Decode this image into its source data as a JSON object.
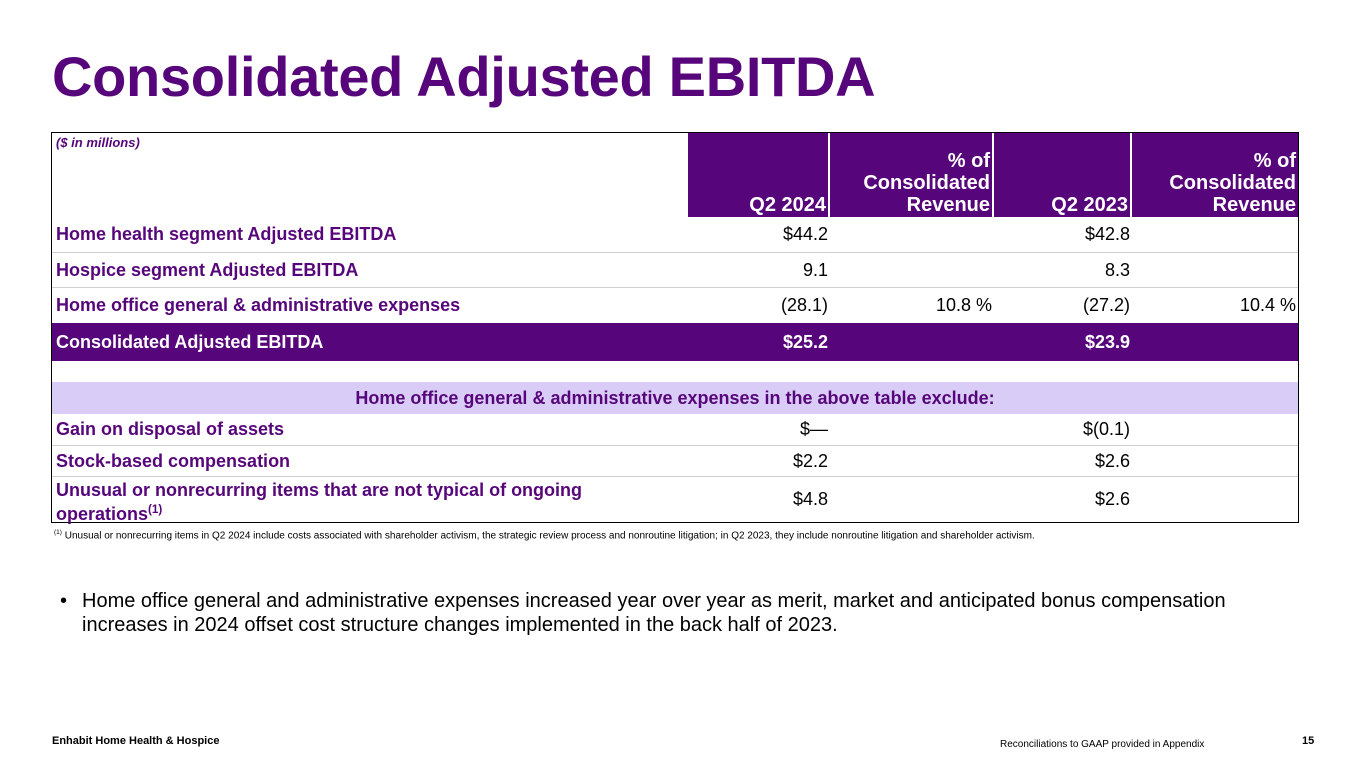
{
  "title": "Consolidated Adjusted EBITDA",
  "table": {
    "units": "($ in millions)",
    "headers": {
      "q2_2024": "Q2 2024",
      "pct_a_line1": "% of",
      "pct_a_line2": "Consolidated",
      "pct_a_line3": "Revenue",
      "q2_2023": "Q2 2023",
      "pct_b_line1": "% of",
      "pct_b_line2": "Consolidated",
      "pct_b_line3": "Revenue"
    },
    "rows": [
      {
        "label": "Home health segment Adjusted EBITDA",
        "q2_2024": "$44.2",
        "pct_2024": "",
        "q2_2023": "$42.8",
        "pct_2023": ""
      },
      {
        "label": "Hospice segment Adjusted EBITDA",
        "q2_2024": "9.1",
        "pct_2024": "",
        "q2_2023": "8.3",
        "pct_2023": ""
      },
      {
        "label": "Home office general & administrative expenses",
        "q2_2024": "(28.1)",
        "pct_2024": "10.8 %",
        "q2_2023": "(27.2)",
        "pct_2023": "10.4 %"
      }
    ],
    "total": {
      "label": "Consolidated Adjusted EBITDA",
      "q2_2024": "$25.2",
      "q2_2023": "$23.9"
    },
    "subheader": "Home office general & administrative expenses in the above table exclude:",
    "exclusions": [
      {
        "label": "Gain on disposal of assets",
        "q2_2024": "$—",
        "q2_2023": "$(0.1)"
      },
      {
        "label": "Stock-based compensation",
        "q2_2024": "$2.2",
        "q2_2023": "$2.6"
      },
      {
        "label_line1": "Unusual or nonrecurring items that are not typical of ongoing",
        "label_line2": "operations",
        "footnote_mark": "(1)",
        "q2_2024": "$4.8",
        "q2_2023": "$2.6"
      }
    ]
  },
  "footnote": {
    "mark": "(1)",
    "text": "Unusual or nonrecurring items in Q2 2024 include costs associated with shareholder activism, the strategic review process and nonroutine litigation; in Q2 2023, they include nonroutine litigation and shareholder activism."
  },
  "bullets": [
    {
      "symbol": "•",
      "text": "Home office general and administrative expenses increased year over year as merit, market and anticipated bonus compensation increases in 2024 offset cost structure changes implemented in the back half of 2023."
    }
  ],
  "footer": {
    "company": "Enhabit Home Health & Hospice",
    "note": "Reconciliations to GAAP provided in Appendix",
    "page_number": "15"
  },
  "colors": {
    "brand_purple": "#56067a",
    "light_lavender": "#d9cdf7"
  }
}
